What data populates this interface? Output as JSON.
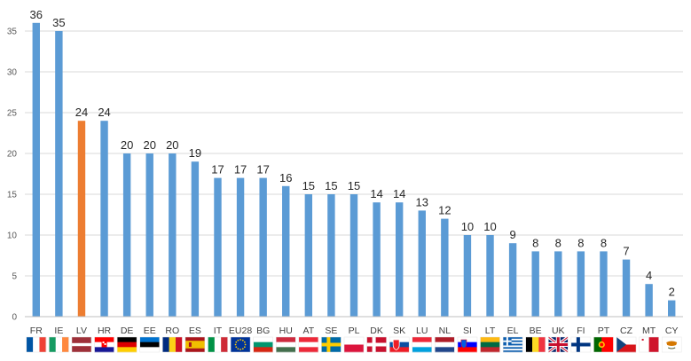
{
  "chart_data": {
    "type": "bar",
    "title": "",
    "xlabel": "",
    "ylabel": "",
    "ylim": [
      0,
      36
    ],
    "yticks": [
      0,
      5,
      10,
      15,
      20,
      25,
      30,
      35
    ],
    "grid": true,
    "legend": "none",
    "categories": [
      "FR",
      "IE",
      "LV",
      "HR",
      "DE",
      "EE",
      "RO",
      "ES",
      "IT",
      "EU28",
      "BG",
      "HU",
      "AT",
      "SE",
      "PL",
      "DK",
      "SK",
      "LU",
      "NL",
      "SI",
      "LT",
      "EL",
      "BE",
      "UK",
      "FI",
      "PT",
      "CZ",
      "MT",
      "CY"
    ],
    "values": [
      36,
      35,
      24,
      24,
      20,
      20,
      20,
      19,
      17,
      17,
      17,
      16,
      15,
      15,
      15,
      14,
      14,
      13,
      12,
      10,
      10,
      9,
      8,
      8,
      8,
      8,
      7,
      4,
      2
    ],
    "colors": {
      "default": "#5b9bd5",
      "highlight": "#ed7d31",
      "highlight_category": "LV",
      "gridline": "#d9d9d9",
      "axis": "#bfbfbf"
    },
    "flag_icons": [
      "fr-flag-icon",
      "ie-flag-icon",
      "lv-flag-icon",
      "hr-flag-icon",
      "de-flag-icon",
      "ee-flag-icon",
      "ro-flag-icon",
      "es-flag-icon",
      "it-flag-icon",
      "eu-flag-icon",
      "bg-flag-icon",
      "hu-flag-icon",
      "at-flag-icon",
      "se-flag-icon",
      "pl-flag-icon",
      "dk-flag-icon",
      "sk-flag-icon",
      "lu-flag-icon",
      "nl-flag-icon",
      "si-flag-icon",
      "lt-flag-icon",
      "el-flag-icon",
      "be-flag-icon",
      "uk-flag-icon",
      "fi-flag-icon",
      "pt-flag-icon",
      "cz-flag-icon",
      "mt-flag-icon",
      "cy-flag-icon"
    ]
  }
}
